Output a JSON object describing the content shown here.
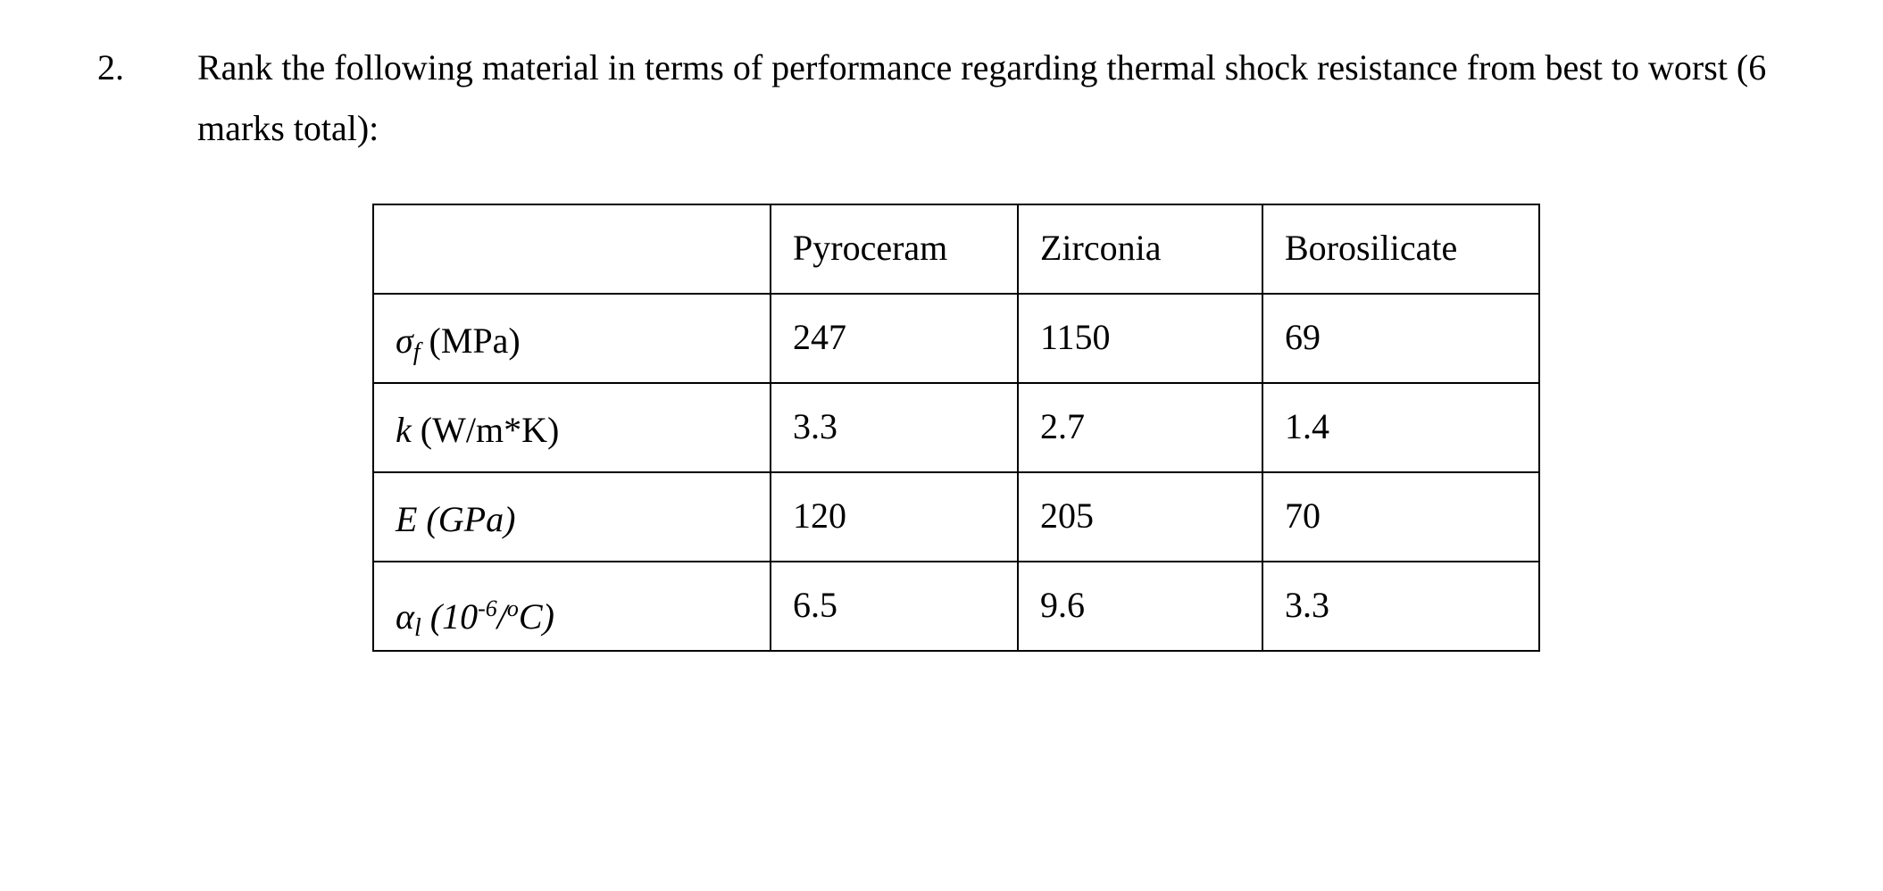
{
  "question": {
    "number": "2.",
    "text": "Rank the following material in terms of performance regarding thermal shock resistance from best to worst (6 marks total):"
  },
  "table": {
    "header": [
      "Pyroceram",
      "Zirconia",
      "Borosilicate"
    ],
    "rows": [
      {
        "label": [
          {
            "text": "σ",
            "style": "italic"
          },
          {
            "text": "f",
            "style": "sub-italic"
          },
          {
            "text": " (MPa)",
            "style": "normal"
          }
        ],
        "cells": [
          247,
          1150,
          69
        ]
      },
      {
        "label": [
          {
            "text": "k",
            "style": "italic"
          },
          {
            "text": " (W/m*K)",
            "style": "normal"
          }
        ],
        "cells": [
          3.3,
          2.7,
          1.4
        ]
      },
      {
        "label": [
          {
            "text": "E (GPa)",
            "style": "italic"
          }
        ],
        "cells": [
          120,
          205,
          70
        ]
      },
      {
        "label": [
          {
            "text": "α",
            "style": "italic"
          },
          {
            "text": "l",
            "style": "sub-italic"
          },
          {
            "text": " (10",
            "style": "italic"
          },
          {
            "text": "-6",
            "style": "sup-italic"
          },
          {
            "text": "/",
            "style": "italic"
          },
          {
            "text": "o",
            "style": "sup-italic"
          },
          {
            "text": "C)",
            "style": "italic"
          }
        ],
        "cells": [
          6.5,
          9.6,
          3.3
        ]
      }
    ]
  }
}
